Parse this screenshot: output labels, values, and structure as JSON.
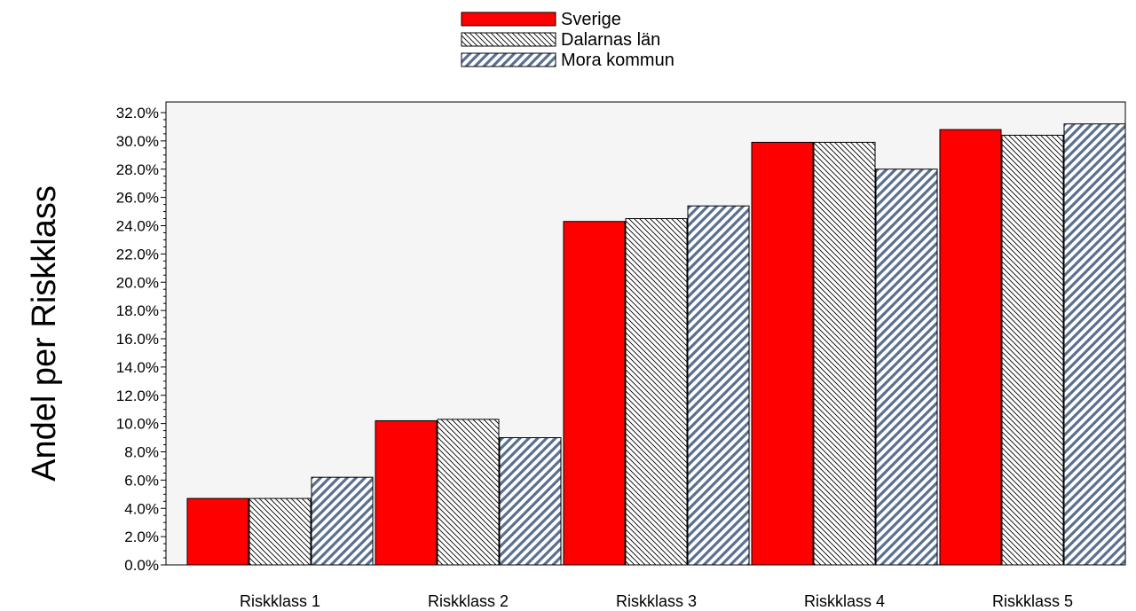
{
  "chart_data": {
    "type": "bar",
    "title": "",
    "xlabel": "",
    "ylabel": "Andel per Riskklass",
    "ylim": [
      0,
      32
    ],
    "ytick_step": 2,
    "ytick_labels": [
      "0.0%",
      "2.0%",
      "4.0%",
      "6.0%",
      "8.0%",
      "10.0%",
      "12.0%",
      "14.0%",
      "16.0%",
      "18.0%",
      "20.0%",
      "22.0%",
      "24.0%",
      "26.0%",
      "28.0%",
      "30.0%",
      "32.0%"
    ],
    "categories": [
      "Riskklass 1",
      "Riskklass 2",
      "Riskklass 3",
      "Riskklass 4",
      "Riskklass 5"
    ],
    "legend_position": "top-center",
    "grid": false,
    "series": [
      {
        "name": "Sverige",
        "values": [
          4.7,
          10.2,
          24.3,
          29.9,
          30.8
        ],
        "color": "#ff0000",
        "pattern": "solid"
      },
      {
        "name": "Dalarnas län",
        "values": [
          4.7,
          10.3,
          24.5,
          29.9,
          30.4
        ],
        "color": "#000000",
        "pattern": "backslash-hatch"
      },
      {
        "name": "Mora kommun",
        "values": [
          6.2,
          9.0,
          25.4,
          28.0,
          31.2
        ],
        "color": "#5a7090",
        "pattern": "forward-diagonal-stripes"
      }
    ]
  }
}
